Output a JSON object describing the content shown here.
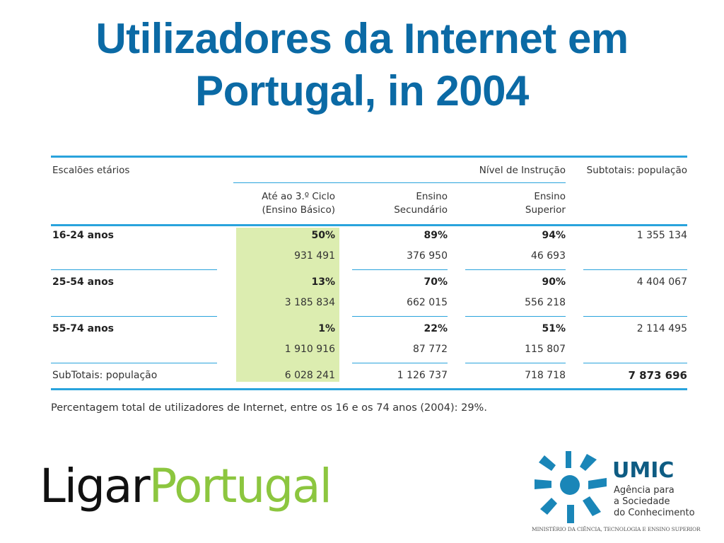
{
  "title": {
    "line1": "Utilizadores da Internet em",
    "line2": "Portugal, in 2004"
  },
  "colors": {
    "title": "#0b6aa5",
    "rule": "#29a3dc",
    "highlight": "#dcedb0",
    "ligar_green": "#8cc63f",
    "umic_blue": "#0e5c83"
  },
  "table": {
    "header": {
      "age_groups": "Escalões etários",
      "education_level": "Nível de Instrução",
      "subtotals": "Subtotais: população",
      "col1_line1": "Até ao 3.º Ciclo",
      "col1_line2": "(Ensino Básico)",
      "col2_line1": "Ensino",
      "col2_line2": "Secundário",
      "col3_line1": "Ensino",
      "col3_line2": "Superior"
    },
    "rows": [
      {
        "label": "16-24 anos",
        "basico_pct": "50%",
        "secundario_pct": "89%",
        "superior_pct": "94%",
        "subtotal": "1 355 134",
        "basico_n": "931 491",
        "secundario_n": "376 950",
        "superior_n": "46 693"
      },
      {
        "label": "25-54 anos",
        "basico_pct": "13%",
        "secundario_pct": "70%",
        "superior_pct": "90%",
        "subtotal": "4 404 067",
        "basico_n": "3 185 834",
        "secundario_n": "662 015",
        "superior_n": "556 218"
      },
      {
        "label": "55-74 anos",
        "basico_pct": "1%",
        "secundario_pct": "22%",
        "superior_pct": "51%",
        "subtotal": "2 114 495",
        "basico_n": "1 910 916",
        "secundario_n": "87 772",
        "superior_n": "115 807"
      }
    ],
    "totals": {
      "label": "SubTotais: população",
      "basico": "6 028 241",
      "secundario": "1 126 737",
      "superior": "718 718",
      "total": "7 873 696"
    }
  },
  "footnote": "Percentagem total de utilizadores de Internet, entre os 16 e os 74 anos (2004): 29%.",
  "logos": {
    "ligar_part1": "Ligar",
    "ligar_part2": "Portugal",
    "umic_name": "UMIC",
    "umic_line1": "Agência para",
    "umic_line2": "a Sociedade",
    "umic_line3": "do Conhecimento",
    "ministry": "MINISTÉRIO DA CIÊNCIA, TECNOLOGIA E ENSINO SUPERIOR"
  }
}
